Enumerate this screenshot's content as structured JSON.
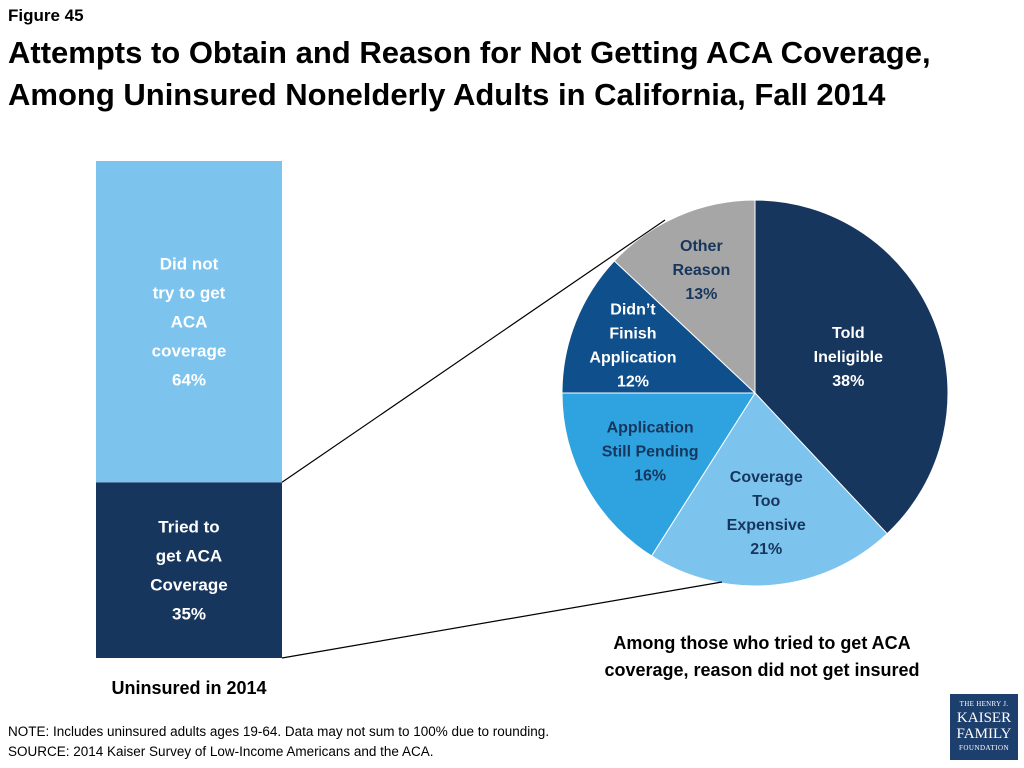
{
  "figure_label": "Figure 45",
  "title": "Attempts to Obtain and Reason for Not Getting ACA Coverage, Among Uninsured Nonelderly Adults in California, Fall 2014",
  "chart_data": [
    {
      "type": "bar",
      "stacked": true,
      "categories": [
        "Uninsured in 2014"
      ],
      "xlabel": "Uninsured in 2014",
      "segments": [
        {
          "name": "Tried to get ACA Coverage",
          "label_lines": [
            "Tried to",
            "get ACA",
            "Coverage",
            "35%"
          ],
          "value": 35,
          "color": "#17365d"
        },
        {
          "name": "Did not try to get ACA coverage",
          "label_lines": [
            "Did not",
            "try to get",
            "ACA",
            "coverage",
            "64%"
          ],
          "value": 64,
          "color": "#7cc4ee"
        }
      ]
    },
    {
      "type": "pie",
      "caption_lines": [
        "Among those who tried to get ACA",
        "coverage, reason did not get insured"
      ],
      "slices": [
        {
          "name": "Told Ineligible",
          "label_lines": [
            "Told",
            "Ineligible",
            "38%"
          ],
          "value": 38,
          "color": "#17365d",
          "text_color": "#ffffff"
        },
        {
          "name": "Coverage Too Expensive",
          "label_lines": [
            "Coverage",
            "Too",
            "Expensive",
            "21%"
          ],
          "value": 21,
          "color": "#7cc4ee",
          "text_color": "#17365d"
        },
        {
          "name": "Application Still Pending",
          "label_lines": [
            "Application",
            "Still Pending",
            "16%"
          ],
          "value": 16,
          "color": "#2fa3e0",
          "text_color": "#17365d"
        },
        {
          "name": "Didn’t Finish Application",
          "label_lines": [
            "Didn’t",
            "Finish",
            "Application",
            "12%"
          ],
          "value": 12,
          "color": "#0e4f8c",
          "text_color": "#ffffff"
        },
        {
          "name": "Other Reason",
          "label_lines": [
            "Other",
            "Reason",
            "13%"
          ],
          "value": 13,
          "color": "#a6a6a6",
          "text_color": "#17365d"
        }
      ]
    }
  ],
  "notes": {
    "note": "NOTE: Includes uninsured adults ages 19-64.  Data may not sum to 100% due to rounding.",
    "source": "SOURCE: 2014 Kaiser Survey of Low-Income Americans and the ACA."
  },
  "logo": {
    "line1": "THE HENRY J.",
    "line2": "KAISER",
    "line3": "FAMILY",
    "line4": "FOUNDATION"
  }
}
